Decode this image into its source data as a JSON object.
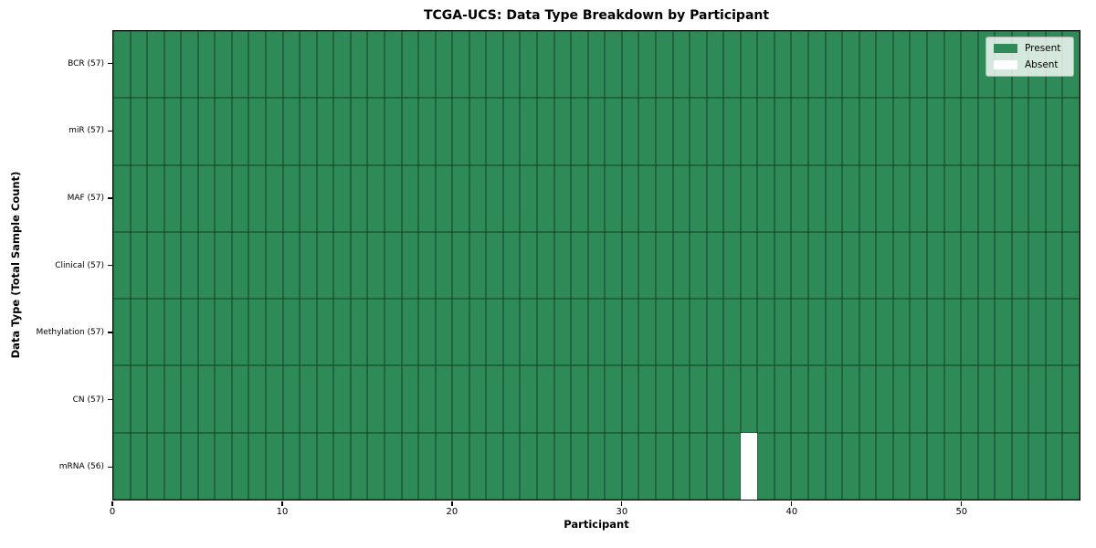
{
  "chart_data": {
    "type": "heatmap",
    "title": "TCGA-UCS: Data Type Breakdown by Participant",
    "xlabel": "Participant",
    "ylabel": "Data Type (Total Sample Count)",
    "n_participants": 57,
    "x_range": [
      0,
      57
    ],
    "x_ticks": [
      0,
      10,
      20,
      30,
      40,
      50
    ],
    "categories": [
      "BCR (57)",
      "miR (57)",
      "MAF (57)",
      "Clinical (57)",
      "Methylation (57)",
      "CN (57)",
      "mRNA (56)"
    ],
    "rows": [
      {
        "data_type": "BCR",
        "label": "BCR (57)",
        "total": 57,
        "absent": []
      },
      {
        "data_type": "miR",
        "label": "miR (57)",
        "total": 57,
        "absent": []
      },
      {
        "data_type": "MAF",
        "label": "MAF (57)",
        "total": 57,
        "absent": []
      },
      {
        "data_type": "Clinical",
        "label": "Clinical (57)",
        "total": 57,
        "absent": []
      },
      {
        "data_type": "Methylation",
        "label": "Methylation (57)",
        "total": 57,
        "absent": []
      },
      {
        "data_type": "CN",
        "label": "CN (57)",
        "total": 57,
        "absent": []
      },
      {
        "data_type": "mRNA",
        "label": "mRNA (56)",
        "total": 56,
        "absent": [
          37
        ]
      }
    ],
    "legend_items": [
      {
        "label": "Present",
        "color": "#2e8b57"
      },
      {
        "label": "Absent",
        "color": "#ffffff"
      }
    ],
    "legend_position": "upper right",
    "grid": true,
    "colors": {
      "present": "#2e8b57",
      "absent": "#ffffff",
      "cell_edge": "rgba(0,0,0,0.55)",
      "spine": "#000000",
      "background": "#ffffff"
    }
  }
}
